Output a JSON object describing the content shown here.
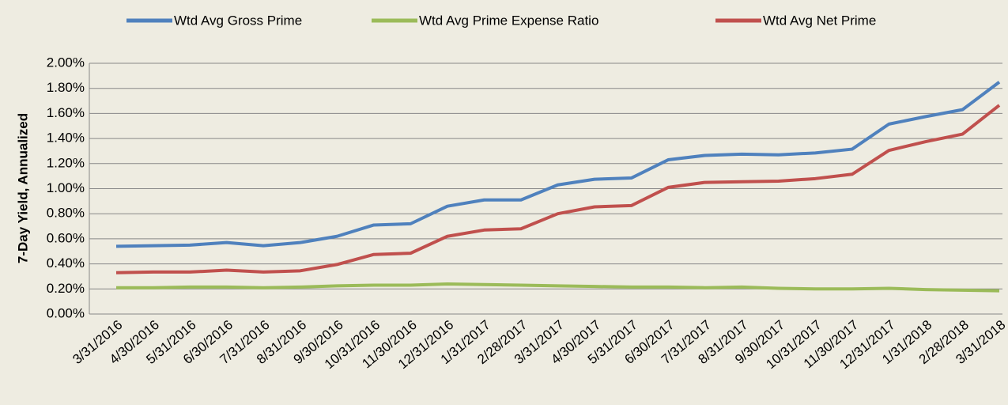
{
  "chart_data": {
    "type": "line",
    "y_label": "7-Day Yield, Annualized",
    "categories": [
      "3/31/2016",
      "4/30/2016",
      "5/31/2016",
      "6/30/2016",
      "7/31/2016",
      "8/31/2016",
      "9/30/2016",
      "10/31/2016",
      "11/30/2016",
      "12/31/2016",
      "1/31/2017",
      "2/28/2017",
      "3/31/2017",
      "4/30/2017",
      "5/31/2017",
      "6/30/2017",
      "7/31/2017",
      "8/31/2017",
      "9/30/2017",
      "10/31/2017",
      "11/30/2017",
      "12/31/2017",
      "1/31/2018",
      "2/28/2018",
      "3/31/2018"
    ],
    "series": [
      {
        "name": "Wtd Avg Gross Prime",
        "color": "#4f81bd",
        "values": [
          0.54,
          0.545,
          0.55,
          0.57,
          0.545,
          0.57,
          0.62,
          0.71,
          0.72,
          0.86,
          0.91,
          0.91,
          1.03,
          1.075,
          1.085,
          1.23,
          1.265,
          1.275,
          1.27,
          1.285,
          1.315,
          1.515,
          1.575,
          1.63,
          1.85
        ]
      },
      {
        "name": "Wtd Avg Prime Expense Ratio",
        "color": "#9bbb59",
        "values": [
          0.21,
          0.21,
          0.215,
          0.215,
          0.21,
          0.215,
          0.225,
          0.23,
          0.23,
          0.24,
          0.235,
          0.23,
          0.225,
          0.22,
          0.215,
          0.215,
          0.21,
          0.215,
          0.205,
          0.2,
          0.2,
          0.205,
          0.195,
          0.19,
          0.185
        ]
      },
      {
        "name": "Wtd Avg Net Prime",
        "color": "#c0504d",
        "values": [
          0.33,
          0.335,
          0.335,
          0.35,
          0.335,
          0.345,
          0.395,
          0.475,
          0.485,
          0.62,
          0.67,
          0.68,
          0.8,
          0.855,
          0.865,
          1.01,
          1.05,
          1.055,
          1.06,
          1.08,
          1.115,
          1.305,
          1.375,
          1.435,
          1.665
        ]
      }
    ],
    "ylim": [
      0,
      2
    ],
    "yticks": [
      {
        "value": 0,
        "label": "0.00%"
      },
      {
        "value": 0.2,
        "label": "0.20%"
      },
      {
        "value": 0.4,
        "label": "0.40%"
      },
      {
        "value": 0.6,
        "label": "0.60%"
      },
      {
        "value": 0.8,
        "label": "0.80%"
      },
      {
        "value": 1,
        "label": "1.00%"
      },
      {
        "value": 1.2,
        "label": "1.20%"
      },
      {
        "value": 1.4,
        "label": "1.40%"
      },
      {
        "value": 1.6,
        "label": "1.60%"
      },
      {
        "value": 1.8,
        "label": "1.80%"
      },
      {
        "value": 2,
        "label": "2.00%"
      }
    ],
    "grid": true,
    "legend": "top"
  }
}
